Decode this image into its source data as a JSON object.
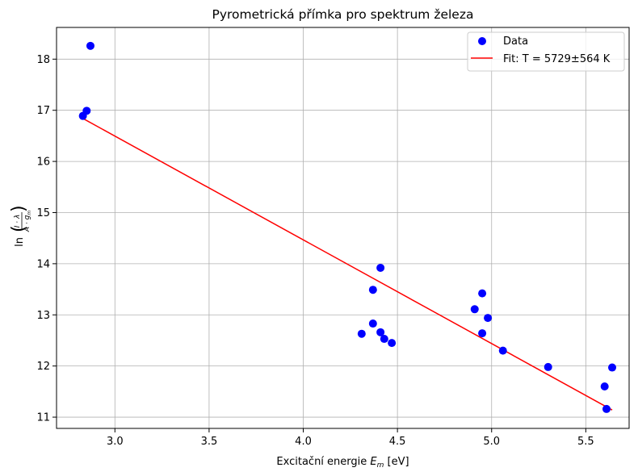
{
  "chart_data": {
    "type": "scatter",
    "title": "Pyrometrická přímka pro spektrum železa",
    "xlabel": {
      "prefix": "Excitační energie ",
      "var": "E",
      "sub": "m",
      "suffix": " [eV]"
    },
    "ylabel": {
      "text": "ln(I·λ / A·g_m)"
    },
    "xlim": [
      2.69,
      5.73
    ],
    "ylim": [
      10.78,
      18.62
    ],
    "xticks": [
      3.0,
      3.5,
      4.0,
      4.5,
      5.0,
      5.5
    ],
    "xtick_labels": [
      "3.0",
      "3.5",
      "4.0",
      "4.5",
      "5.0",
      "5.5"
    ],
    "yticks": [
      11,
      12,
      13,
      14,
      15,
      16,
      17,
      18
    ],
    "ytick_labels": [
      "11",
      "12",
      "13",
      "14",
      "15",
      "16",
      "17",
      "18"
    ],
    "grid": true,
    "legend": {
      "position": "top-right",
      "entries": [
        "Data",
        "Fit: T = 5729±564  K"
      ]
    },
    "series": [
      {
        "name": "Data",
        "kind": "scatter",
        "color": "#0000ff",
        "points": [
          [
            2.83,
            16.89
          ],
          [
            2.85,
            16.99
          ],
          [
            2.87,
            18.26
          ],
          [
            4.31,
            12.63
          ],
          [
            4.37,
            12.83
          ],
          [
            4.37,
            13.49
          ],
          [
            4.41,
            13.92
          ],
          [
            4.41,
            12.66
          ],
          [
            4.43,
            12.53
          ],
          [
            4.47,
            12.45
          ],
          [
            4.91,
            13.11
          ],
          [
            4.95,
            13.42
          ],
          [
            4.95,
            12.64
          ],
          [
            4.98,
            12.94
          ],
          [
            5.06,
            12.3
          ],
          [
            5.3,
            11.98
          ],
          [
            5.6,
            11.6
          ],
          [
            5.61,
            11.16
          ],
          [
            5.64,
            11.97
          ]
        ]
      },
      {
        "name": "Fit: T = 5729±564  K",
        "kind": "line",
        "color": "#ff0000",
        "points": [
          [
            2.83,
            16.84
          ],
          [
            5.64,
            11.14
          ]
        ]
      }
    ]
  }
}
